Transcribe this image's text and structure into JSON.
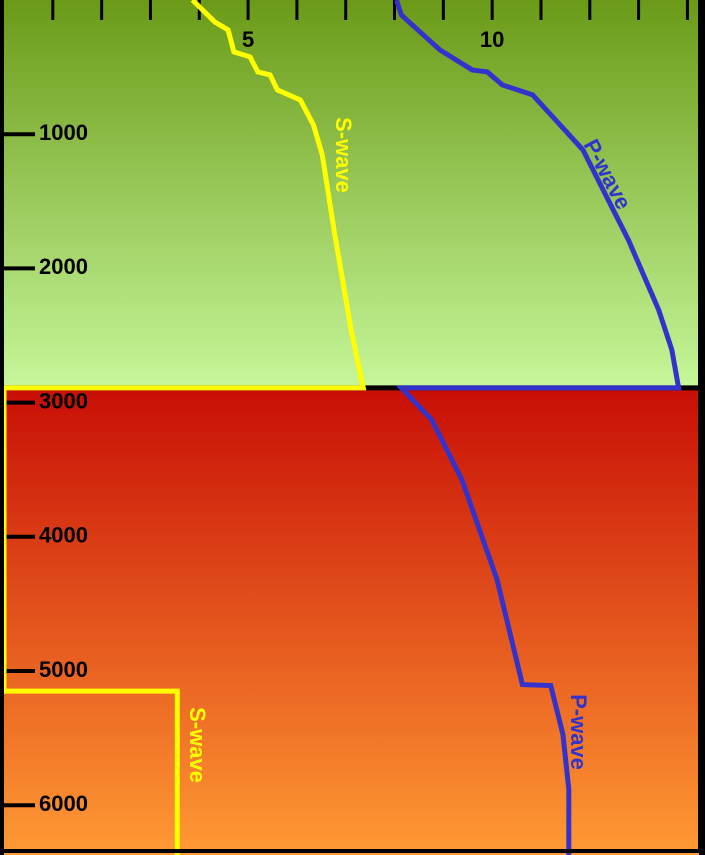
{
  "chart_data": {
    "type": "line",
    "xlim": [
      0,
      14.36
    ],
    "xticks": [
      5,
      10
    ],
    "xminor_ticks": [
      1,
      2,
      3,
      4,
      6,
      7,
      8,
      9,
      11,
      12,
      13,
      14
    ],
    "ylim": [
      0,
      6371
    ],
    "yticks": [
      1000,
      2000,
      3000,
      4000,
      5000,
      6000
    ],
    "y_inverted": true,
    "bands": [
      {
        "range": [
          0,
          2890
        ],
        "colors": [
          "#6b9a18",
          "#c6f79a"
        ]
      },
      {
        "range": [
          2890,
          6371
        ],
        "colors": [
          "#c80e06",
          "#ff9a34"
        ]
      }
    ],
    "boundary": 2890,
    "series": [
      {
        "name": "S-wave",
        "color": "#ffff00",
        "x": [
          3.86,
          4.32,
          4.59,
          4.71,
          5.04,
          5.2,
          5.45,
          5.6,
          6.07,
          6.34,
          6.52,
          6.76,
          7.11,
          7.36,
          0,
          0,
          3.55,
          3.55
        ],
        "y": [
          0,
          164,
          223,
          387,
          424,
          536,
          558,
          670,
          745,
          931,
          1154,
          1713,
          2457,
          2890,
          2890,
          5150,
          5150,
          6371
        ]
      },
      {
        "name": "P-wave",
        "color": "#3333cc",
        "x": [
          8.04,
          8.14,
          8.93,
          9.59,
          9.9,
          10.21,
          10.83,
          11.86,
          12.79,
          13.41,
          13.68,
          13.82,
          8.14,
          8.76,
          9.38,
          10.1,
          10.62,
          11.2,
          11.45,
          11.57,
          11.57
        ],
        "y": [
          0,
          112,
          372,
          521,
          536,
          633,
          707,
          1117,
          1787,
          2308,
          2606,
          2890,
          2890,
          3127,
          3574,
          4319,
          5101,
          5108,
          5473,
          5882,
          6371
        ]
      }
    ]
  }
}
